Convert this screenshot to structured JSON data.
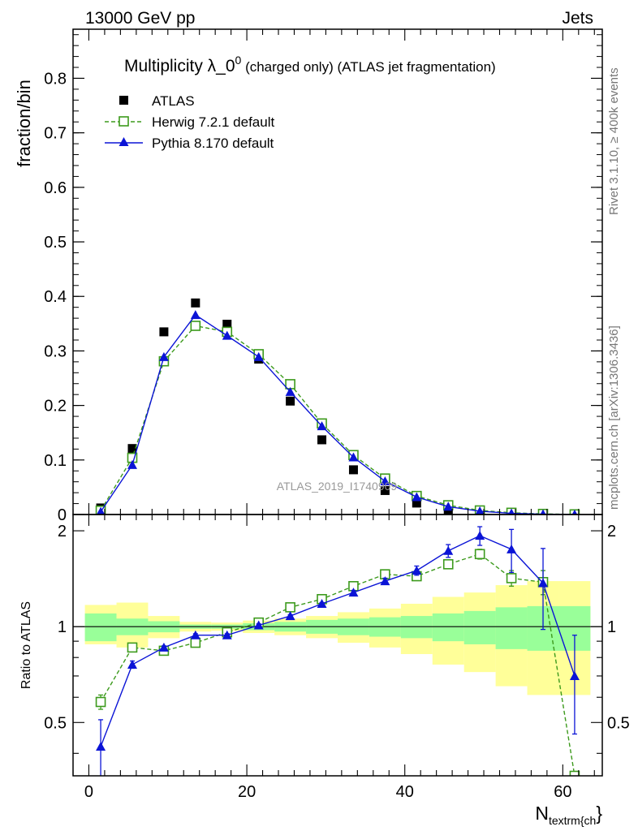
{
  "header": {
    "left": "13000 GeV pp",
    "right": "Jets"
  },
  "side_labels": {
    "rivet": "Rivet 3.1.10, ≥ 400k events",
    "mcplots": "mcplots.cern.ch [arXiv:1306.3436]"
  },
  "chart_data": [
    {
      "type": "line",
      "panel": "main",
      "title_main": "Multiplicity λ_0",
      "title_sup": "0",
      "title_tail": " (charged only) (ATLAS jet fragmentation)",
      "ylabel": "fraction/bin",
      "reference": "ATLAS_2019_I1740909",
      "xlim": [
        -2,
        65
      ],
      "ylim": [
        0,
        0.89
      ],
      "yticks": [
        0,
        0.1,
        0.2,
        0.3,
        0.4,
        0.5,
        0.6,
        0.7,
        0.8
      ],
      "ytick_labels": [
        "0",
        "0.1",
        "0.2",
        "0.3",
        "0.4",
        "0.5",
        "0.6",
        "0.7",
        "0.8"
      ],
      "x": [
        1.5,
        5.5,
        9.5,
        13.5,
        17.5,
        21.5,
        25.5,
        29.5,
        33.5,
        37.5,
        41.5,
        45.5,
        49.5,
        53.5,
        57.5,
        61.5
      ],
      "series": [
        {
          "name": "ATLAS",
          "marker": "filled-square",
          "color": "#000000",
          "values": [
            0.012,
            0.121,
            0.335,
            0.388,
            0.349,
            0.285,
            0.208,
            0.137,
            0.082,
            0.044,
            0.021,
            0.008,
            0.003,
            0.0012,
            0.0004,
            0.0002
          ]
        },
        {
          "name": "Herwig 7.2.1 default",
          "marker": "open-square",
          "line": "dashed",
          "color": "#3c9a1c",
          "values": [
            0.007,
            0.104,
            0.281,
            0.346,
            0.335,
            0.294,
            0.239,
            0.167,
            0.109,
            0.066,
            0.034,
            0.017,
            0.0075,
            0.0032,
            0.0011,
            0.0003
          ]
        },
        {
          "name": "Pythia 8.170 default",
          "marker": "filled-triangle",
          "line": "solid",
          "color": "#0b14d6",
          "values": [
            0.005,
            0.091,
            0.289,
            0.366,
            0.328,
            0.289,
            0.225,
            0.162,
            0.105,
            0.061,
            0.032,
            0.0145,
            0.006,
            0.0022,
            0.0007,
            0.0001
          ]
        }
      ]
    },
    {
      "type": "line",
      "panel": "ratio",
      "ylabel": "Ratio to ATLAS",
      "xlabel_main": "N",
      "xlabel_sub": "textrm{ch",
      "xlabel_tail": "}",
      "xlim": [
        -2,
        65
      ],
      "ylim": [
        0.34,
        2.25
      ],
      "yticks": [
        0.5,
        1,
        2
      ],
      "ytick_labels": [
        "0.5",
        "1",
        "2"
      ],
      "xticks": [
        0,
        20,
        40,
        60
      ],
      "xtick_labels": [
        "0",
        "20",
        "40",
        "60"
      ],
      "bin_edges": [
        -0.5,
        3.5,
        7.5,
        11.5,
        15.5,
        19.5,
        23.5,
        27.5,
        31.5,
        35.5,
        39.5,
        43.5,
        47.5,
        51.5,
        55.5,
        59.5,
        63.5
      ],
      "band_inner": {
        "color": "#99ff99",
        "low": [
          0.9,
          0.94,
          0.96,
          0.985,
          0.985,
          0.975,
          0.965,
          0.95,
          0.94,
          0.93,
          0.92,
          0.9,
          0.88,
          0.85,
          0.84,
          0.84
        ],
        "high": [
          1.1,
          1.06,
          1.04,
          1.015,
          1.015,
          1.025,
          1.035,
          1.05,
          1.06,
          1.07,
          1.08,
          1.1,
          1.12,
          1.15,
          1.16,
          1.16
        ]
      },
      "band_outer": {
        "color": "#ffff99",
        "low": [
          0.88,
          0.86,
          0.92,
          0.965,
          0.97,
          0.955,
          0.94,
          0.92,
          0.89,
          0.86,
          0.82,
          0.76,
          0.72,
          0.65,
          0.61,
          0.61
        ],
        "high": [
          1.17,
          1.19,
          1.08,
          1.035,
          1.03,
          1.045,
          1.06,
          1.08,
          1.11,
          1.14,
          1.18,
          1.24,
          1.28,
          1.35,
          1.39,
          1.39
        ]
      },
      "series": [
        {
          "name": "Herwig 7.2.1 default",
          "marker": "open-square",
          "line": "dashed",
          "color": "#3c9a1c",
          "values": [
            0.58,
            0.86,
            0.84,
            0.89,
            0.96,
            1.03,
            1.15,
            1.22,
            1.34,
            1.46,
            1.44,
            1.57,
            1.69,
            1.42,
            1.38,
            0.34
          ],
          "err": [
            0.03,
            0.01,
            0.01,
            0.01,
            0.01,
            0.01,
            0.01,
            0.01,
            0.01,
            0.02,
            0.03,
            0.04,
            0.06,
            0.08,
            0.12,
            0.0
          ]
        },
        {
          "name": "Pythia 8.170 default",
          "marker": "filled-triangle",
          "line": "solid",
          "color": "#0b14d6",
          "values": [
            0.42,
            0.76,
            0.86,
            0.94,
            0.94,
            1.01,
            1.08,
            1.18,
            1.28,
            1.39,
            1.5,
            1.73,
            1.93,
            1.75,
            1.37,
            0.7
          ],
          "err": [
            0.09,
            0.02,
            0.01,
            0.01,
            0.01,
            0.01,
            0.01,
            0.01,
            0.02,
            0.03,
            0.05,
            0.08,
            0.13,
            0.27,
            0.39,
            0.24
          ]
        }
      ]
    }
  ]
}
